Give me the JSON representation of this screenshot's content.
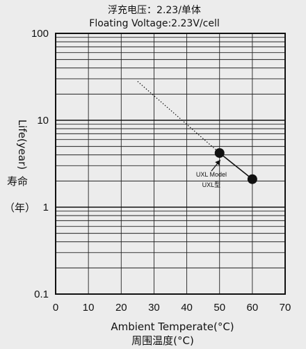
{
  "chart_data": {
    "type": "line",
    "title_cn": "浮充电压：2.23/单体",
    "title_en": "Floating Voltage:2.23V/cell",
    "xlabel": "Ambient Temperate(°C)",
    "xlabel_cn": "周围温度(°C)",
    "ylabel": "Life(year)",
    "ylabel_cn_1": "寿命",
    "ylabel_cn_2": "（年）",
    "x_ticks": [
      "0",
      "10",
      "20",
      "30",
      "40",
      "50",
      "60",
      "70"
    ],
    "y_ticks": [
      "0.1",
      "1",
      "10",
      "100"
    ],
    "xlim": [
      0,
      70
    ],
    "ylim": [
      0.1,
      100
    ],
    "y_scale": "log",
    "grid": true,
    "series": [
      {
        "style": "dotted",
        "color": "#111111",
        "x": [
          25,
          50
        ],
        "y": [
          28,
          4.2
        ],
        "markers": false
      },
      {
        "style": "solid",
        "color": "#111111",
        "x": [
          50,
          60
        ],
        "y": [
          4.2,
          2.1
        ],
        "markers": true
      }
    ],
    "annotations": [
      {
        "text": "UXL Model",
        "x": 47.5,
        "y": 2.25
      },
      {
        "text": "UXL型",
        "x": 47.5,
        "y": 1.7
      }
    ]
  }
}
